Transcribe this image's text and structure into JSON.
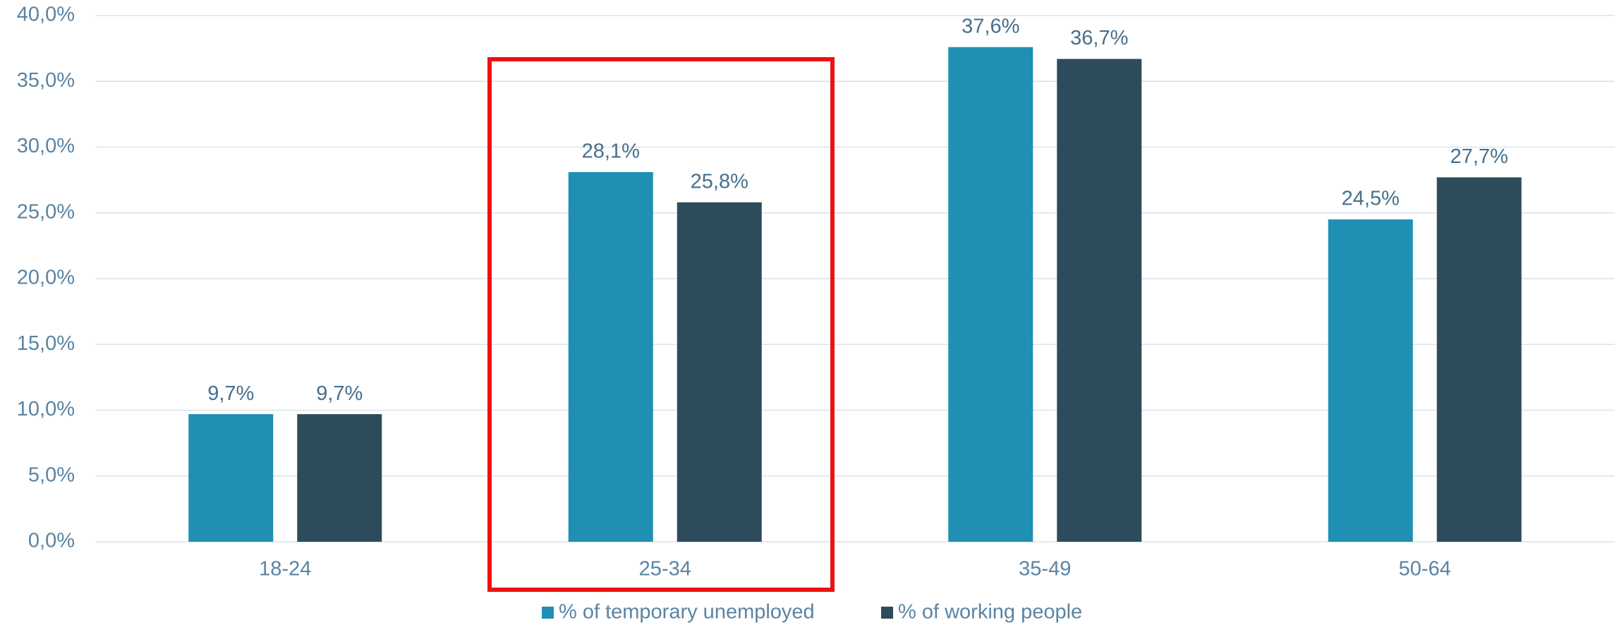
{
  "chart_data": {
    "type": "bar",
    "categories": [
      "18-24",
      "25-34",
      "35-49",
      "50-64"
    ],
    "series": [
      {
        "name": "% of temporary unemployed",
        "color": "#1f8fb3",
        "values": [
          9.7,
          28.1,
          37.6,
          24.5
        ],
        "value_labels": [
          "9,7%",
          "28,1%",
          "37,6%",
          "24,5%"
        ]
      },
      {
        "name": "% of working people",
        "color": "#2e4b5c",
        "values": [
          9.7,
          25.8,
          36.7,
          27.7
        ],
        "value_labels": [
          "9,7%",
          "25,8%",
          "36,7%",
          "27,7%"
        ]
      }
    ],
    "ylim": [
      0,
      40
    ],
    "yticks": [
      {
        "value": 0,
        "label": "0,0%"
      },
      {
        "value": 5,
        "label": "5,0%"
      },
      {
        "value": 10,
        "label": "10,0%"
      },
      {
        "value": 15,
        "label": "15,0%"
      },
      {
        "value": 20,
        "label": "20,0%"
      },
      {
        "value": 25,
        "label": "25,0%"
      },
      {
        "value": 30,
        "label": "30,0%"
      },
      {
        "value": 35,
        "label": "35,0%"
      },
      {
        "value": 40,
        "label": "40,0%"
      }
    ],
    "grid": true,
    "legend": "bottom"
  }
}
